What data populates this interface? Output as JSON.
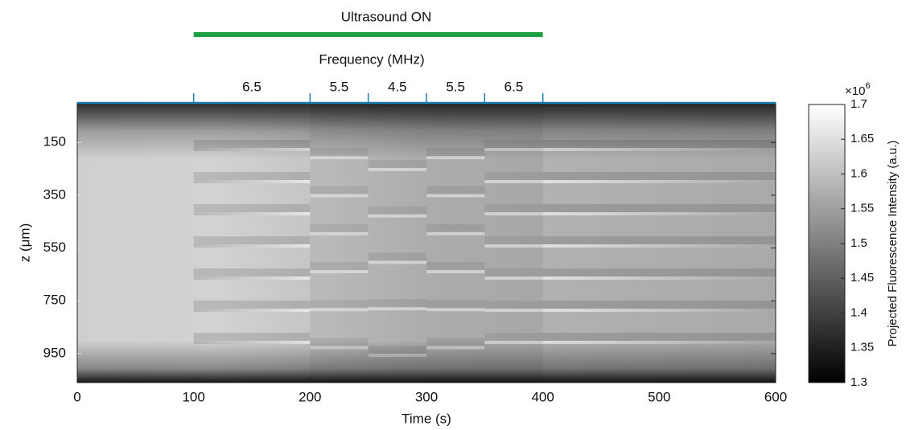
{
  "chart_data": {
    "type": "heatmap",
    "annotation": {
      "text": "Ultrasound ON",
      "start": 100,
      "end": 400,
      "color": "#1fa045"
    },
    "top_axis": {
      "label": "Frequency (MHz)",
      "color": "#1a7fb5",
      "segments": [
        {
          "start": 100,
          "end": 200,
          "value": 6.5
        },
        {
          "start": 200,
          "end": 250,
          "value": 5.5
        },
        {
          "start": 250,
          "end": 300,
          "value": 4.5
        },
        {
          "start": 300,
          "end": 350,
          "value": 5.5
        },
        {
          "start": 350,
          "end": 400,
          "value": 6.5
        }
      ]
    },
    "xlabel": "Time (s)",
    "ylabel": "z (μm)",
    "xlim": [
      0,
      600
    ],
    "xticks": [
      0,
      100,
      200,
      300,
      400,
      500,
      600
    ],
    "ylim": [
      0,
      1060
    ],
    "y_reversed": true,
    "yticks": [
      150,
      350,
      550,
      750,
      950
    ],
    "colorbar": {
      "label": "Projected Fluorescence Intensity (a.u.)",
      "colormap": "gray",
      "lim": [
        1.3,
        1.7
      ],
      "ticks": [
        1.3,
        1.35,
        1.4,
        1.45,
        1.5,
        1.55,
        1.6,
        1.65,
        1.7
      ],
      "scale_base": "×10",
      "scale_exponent": "6"
    }
  }
}
